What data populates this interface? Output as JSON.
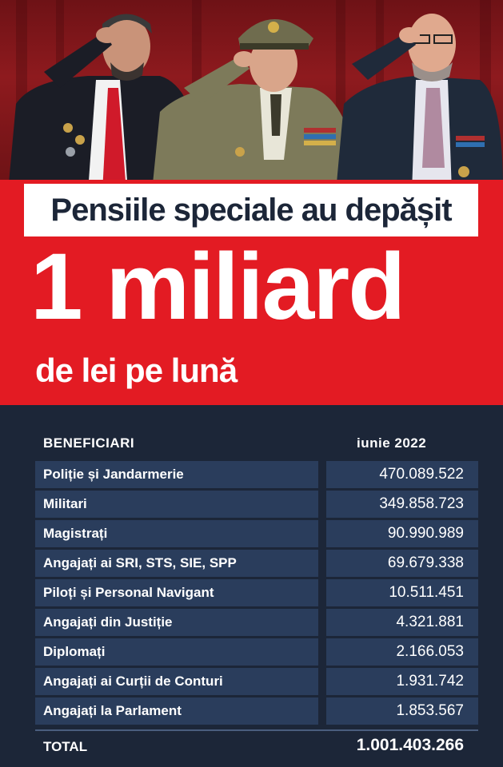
{
  "headline": "Pensiile speciale au depășit",
  "amount": "1 miliard",
  "subline": "de lei pe lună",
  "table": {
    "header_beneficiaries": "BENEFICIARI",
    "header_period": "iunie 2022",
    "rows": [
      {
        "name": "Poliție și Jandarmerie",
        "value": "470.089.522"
      },
      {
        "name": "Militari",
        "value": "349.858.723"
      },
      {
        "name": "Magistrați",
        "value": "90.990.989"
      },
      {
        "name": "Angajați ai SRI, STS, SIE, SPP",
        "value": "69.679.338"
      },
      {
        "name": "Piloți și Personal Navigant",
        "value": "10.511.451"
      },
      {
        "name": "Angajați din Justiție",
        "value": "4.321.881"
      },
      {
        "name": "Diplomați",
        "value": "2.166.053"
      },
      {
        "name": "Angajați ai Curții de Conturi",
        "value": "1.931.742"
      },
      {
        "name": "Angajați la Parlament",
        "value": "1.853.567"
      }
    ],
    "total_label": "TOTAL",
    "total_value": "1.001.403.266"
  },
  "colors": {
    "red": "#e31b23",
    "navy": "#1c2638",
    "cell": "#2a3d5c"
  }
}
